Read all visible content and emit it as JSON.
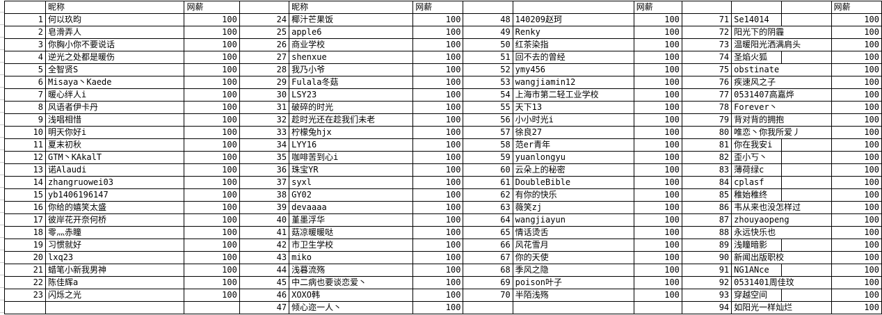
{
  "colors": {
    "grid_border": "#000000",
    "background": "#ffffff",
    "text": "#000000",
    "gutter_gridline": "#c9c9c9"
  },
  "table": {
    "nickname_header": "昵称",
    "salary_header": "网薪",
    "split_rows": [
      71,
      74,
      81,
      82,
      83,
      84,
      85,
      89,
      91,
      93
    ],
    "groups": [
      {
        "has_nickname_header": true,
        "has_salary_header": true,
        "rows": [
          {
            "no": 1,
            "name": "何以玖昀",
            "salary": "100"
          },
          {
            "no": 2,
            "name": "皂滑弄人",
            "salary": "100"
          },
          {
            "no": 3,
            "name": "你胸小你不要说话",
            "salary": "100"
          },
          {
            "no": 4,
            "name": "逆光之处都是暖伤",
            "salary": "100"
          },
          {
            "no": 5,
            "name": "全智贤S",
            "salary": "100"
          },
          {
            "no": 6,
            "name": "Misaya丶Kaede",
            "salary": "100"
          },
          {
            "no": 7,
            "name": "暖心绊人i",
            "salary": "100"
          },
          {
            "no": 8,
            "name": "风语者伊卡丹",
            "salary": "100"
          },
          {
            "no": 9,
            "name": "浅唱相惜",
            "salary": "100"
          },
          {
            "no": 10,
            "name": "明天你好i",
            "salary": "100"
          },
          {
            "no": 11,
            "name": "夏末初秋",
            "salary": "100"
          },
          {
            "no": 12,
            "name": "GTM丶KAkalT",
            "salary": "100"
          },
          {
            "no": 13,
            "name": "诺Alaudi",
            "salary": "100"
          },
          {
            "no": 14,
            "name": "zhangruowei03",
            "salary": "100"
          },
          {
            "no": 15,
            "name": "yb1406196147",
            "salary": "100"
          },
          {
            "no": 16,
            "name": "你给的嬉笑太盛",
            "salary": "100"
          },
          {
            "no": 17,
            "name": "彼岸花开奈何桥",
            "salary": "100"
          },
          {
            "no": 18,
            "name": "零灬赤瞳",
            "salary": "100"
          },
          {
            "no": 19,
            "name": "习惯就好",
            "salary": "100"
          },
          {
            "no": 20,
            "name": "lxq23",
            "salary": "100"
          },
          {
            "no": 21,
            "name": "蜡笔小新我男神",
            "salary": "100"
          },
          {
            "no": 22,
            "name": "陈佳辉a",
            "salary": "100"
          },
          {
            "no": 23,
            "name": "闪烁之光",
            "salary": "100"
          }
        ]
      },
      {
        "has_nickname_header": true,
        "has_salary_header": true,
        "rows": [
          {
            "no": 24,
            "name": "椰汁芒果饭",
            "salary": "100"
          },
          {
            "no": 25,
            "name": "apple6",
            "salary": "100"
          },
          {
            "no": 26,
            "name": "商业学校",
            "salary": "100"
          },
          {
            "no": 27,
            "name": "shenxue",
            "salary": "100"
          },
          {
            "no": 28,
            "name": "我乃小爷",
            "salary": "100"
          },
          {
            "no": 29,
            "name": "Fulala冬菇",
            "salary": "100"
          },
          {
            "no": 30,
            "name": "LSY23",
            "salary": "100"
          },
          {
            "no": 31,
            "name": "破碎的时光",
            "salary": "100"
          },
          {
            "no": 32,
            "name": "趁时光还在趁我们未老",
            "salary": "100"
          },
          {
            "no": 33,
            "name": "柠檬兔hjx",
            "salary": "100"
          },
          {
            "no": 34,
            "name": "LYY16",
            "salary": "100"
          },
          {
            "no": 35,
            "name": "咖啡苦到心i",
            "salary": "100"
          },
          {
            "no": 36,
            "name": "珠宝YR",
            "salary": "100"
          },
          {
            "no": 37,
            "name": "syxl",
            "salary": "100"
          },
          {
            "no": 38,
            "name": "GY02",
            "salary": "100"
          },
          {
            "no": 39,
            "name": "devaaaa",
            "salary": "100"
          },
          {
            "no": 40,
            "name": "堇墨浮华",
            "salary": "100"
          },
          {
            "no": 41,
            "name": "菇凉暖暖哒",
            "salary": "100"
          },
          {
            "no": 42,
            "name": "市卫生学校",
            "salary": "100"
          },
          {
            "no": 43,
            "name": "miko",
            "salary": "100"
          },
          {
            "no": 44,
            "name": "浅暮流殇",
            "salary": "100"
          },
          {
            "no": 45,
            "name": "中二病也要谈恋爱丶",
            "salary": "100"
          },
          {
            "no": 46,
            "name": "XOXO韩",
            "salary": "100"
          },
          {
            "no": 47,
            "name": "倾心迩一人丶",
            "salary": "100"
          }
        ]
      },
      {
        "has_nickname_header": false,
        "has_salary_header": true,
        "rows": [
          {
            "no": 48,
            "name": "140209赵珂",
            "salary": "100"
          },
          {
            "no": 49,
            "name": "Renky",
            "salary": "100"
          },
          {
            "no": 50,
            "name": "红茶染指",
            "salary": "100"
          },
          {
            "no": 51,
            "name": "回不去的曾经",
            "salary": "100"
          },
          {
            "no": 52,
            "name": "ymy456",
            "salary": "100"
          },
          {
            "no": 53,
            "name": "wangjiamin12",
            "salary": "100"
          },
          {
            "no": 54,
            "name": "上海市第二轻工业学校",
            "salary": "100"
          },
          {
            "no": 55,
            "name": "天下13",
            "salary": "100"
          },
          {
            "no": 56,
            "name": "小小时光i",
            "salary": "100"
          },
          {
            "no": 57,
            "name": "徐良27",
            "salary": "100"
          },
          {
            "no": 58,
            "name": "范er青年",
            "salary": "100"
          },
          {
            "no": 59,
            "name": "yuanlongyu",
            "salary": "100"
          },
          {
            "no": 60,
            "name": "云朵上的秘密",
            "salary": "100"
          },
          {
            "no": 61,
            "name": "DoubleBible",
            "salary": "100"
          },
          {
            "no": 62,
            "name": "有你的快乐",
            "salary": "100"
          },
          {
            "no": 63,
            "name": "薇笑zj",
            "salary": "100"
          },
          {
            "no": 64,
            "name": "wangjiayun",
            "salary": "100"
          },
          {
            "no": 65,
            "name": "情话烫舌",
            "salary": "100"
          },
          {
            "no": 66,
            "name": "风花雪月",
            "salary": "100"
          },
          {
            "no": 67,
            "name": "你的天使",
            "salary": "100"
          },
          {
            "no": 68,
            "name": "季风之隐",
            "salary": "100"
          },
          {
            "no": 69,
            "name": "poison叶子",
            "salary": "100"
          },
          {
            "no": 70,
            "name": "半陌浅殇",
            "salary": "100"
          }
        ]
      },
      {
        "has_nickname_header": false,
        "has_salary_header": true,
        "rows": [
          {
            "no": 71,
            "name": "Se14014",
            "salary": "100"
          },
          {
            "no": 72,
            "name": "阳光下的阴霾",
            "salary": "100"
          },
          {
            "no": 73,
            "name": "温暖阳光洒满肩头",
            "salary": "100"
          },
          {
            "no": 74,
            "name": "圣焰火狐",
            "salary": "100"
          },
          {
            "no": 75,
            "name": "obstinate",
            "salary": "100"
          },
          {
            "no": 76,
            "name": "疾速风之子",
            "salary": "100"
          },
          {
            "no": 77,
            "name": "0531407高嘉烨",
            "salary": "100"
          },
          {
            "no": 78,
            "name": "Forever丶",
            "salary": "100"
          },
          {
            "no": 79,
            "name": "背对背的拥抱",
            "salary": "100"
          },
          {
            "no": 80,
            "name": "唯恋丶你我所爱丿",
            "salary": "100"
          },
          {
            "no": 81,
            "name": "你在我安i",
            "salary": "100"
          },
          {
            "no": 82,
            "name": "歪小丂丶",
            "salary": "100"
          },
          {
            "no": 83,
            "name": "薄荷绿c",
            "salary": "100"
          },
          {
            "no": 84,
            "name": "cplasf",
            "salary": "100"
          },
          {
            "no": 85,
            "name": "稚始稚终",
            "salary": "100"
          },
          {
            "no": 86,
            "name": "韦从来也没怎样过",
            "salary": "100"
          },
          {
            "no": 87,
            "name": "zhouyaopeng",
            "salary": "100"
          },
          {
            "no": 88,
            "name": "永远快乐也",
            "salary": "100"
          },
          {
            "no": 89,
            "name": "浅瞳暗影",
            "salary": "100"
          },
          {
            "no": 90,
            "name": "新闻出版职校",
            "salary": "100"
          },
          {
            "no": 91,
            "name": "NG1ANce",
            "salary": "100"
          },
          {
            "no": 92,
            "name": "0531401周佳玟",
            "salary": "100"
          },
          {
            "no": 93,
            "name": "穿越空间",
            "salary": "100"
          },
          {
            "no": 94,
            "name": "如阳光一样灿烂",
            "salary": "100"
          }
        ]
      }
    ]
  }
}
